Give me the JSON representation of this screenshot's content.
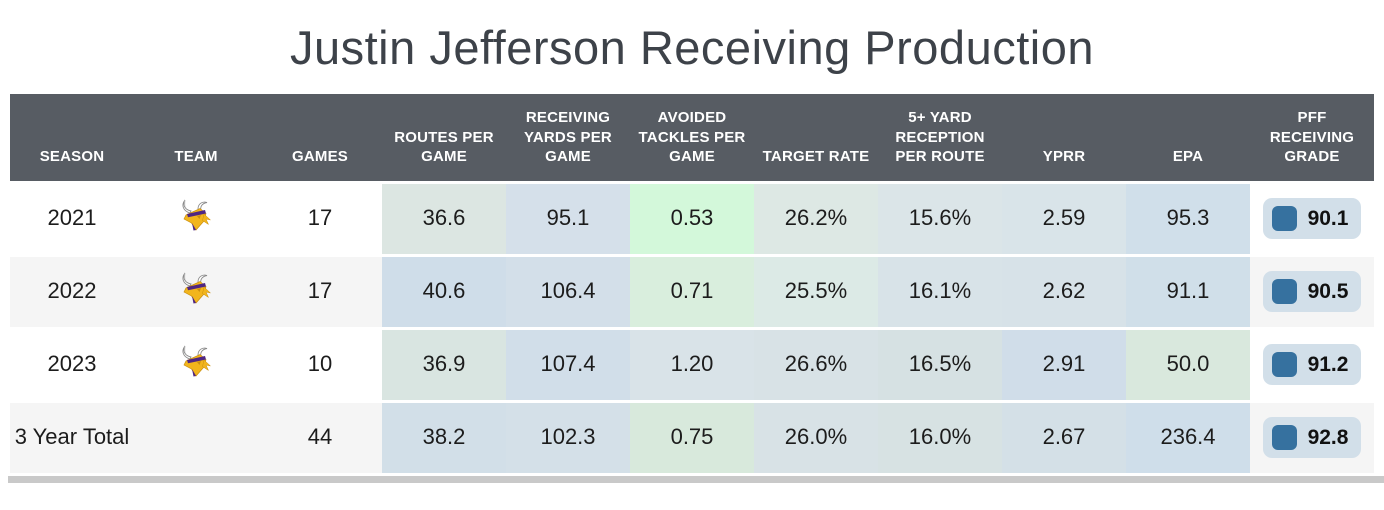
{
  "chart_data": {
    "type": "table",
    "title": "Justin Jefferson Receiving Production",
    "columns": [
      "SEASON",
      "TEAM",
      "GAMES",
      "ROUTES PER GAME",
      "RECEIVING YARDS PER GAME",
      "AVOIDED TACKLES PER GAME",
      "TARGET RATE",
      "5+ YARD RECEPTION PER ROUTE",
      "YPRR",
      "EPA",
      "PFF RECEIVING GRADE"
    ],
    "rows": [
      {
        "season": "2021",
        "team": "Minnesota Vikings",
        "show_logo": true,
        "games": "17",
        "stats": [
          {
            "value": "36.6",
            "bg": "#dce6e2"
          },
          {
            "value": "95.1",
            "bg": "#d5e0ea"
          },
          {
            "value": "0.53",
            "bg": "#d3f8da"
          },
          {
            "value": "26.2%",
            "bg": "#dde8e4"
          },
          {
            "value": "15.6%",
            "bg": "#dbe5e8"
          },
          {
            "value": "2.59",
            "bg": "#d9e4e9"
          },
          {
            "value": "95.3",
            "bg": "#d0dfea"
          }
        ],
        "grade": "90.1"
      },
      {
        "season": "2022",
        "team": "Minnesota Vikings",
        "show_logo": true,
        "games": "17",
        "stats": [
          {
            "value": "40.6",
            "bg": "#cfdde9"
          },
          {
            "value": "106.4",
            "bg": "#d3dfe9"
          },
          {
            "value": "0.71",
            "bg": "#d9eedd"
          },
          {
            "value": "25.5%",
            "bg": "#dceae6"
          },
          {
            "value": "16.1%",
            "bg": "#d8e3e8"
          },
          {
            "value": "2.62",
            "bg": "#d7e2e8"
          },
          {
            "value": "91.1",
            "bg": "#d0dfe9"
          }
        ],
        "grade": "90.5"
      },
      {
        "season": "2023",
        "team": "Minnesota Vikings",
        "show_logo": true,
        "games": "10",
        "stats": [
          {
            "value": "36.9",
            "bg": "#d9e5e1"
          },
          {
            "value": "107.4",
            "bg": "#d1dee9"
          },
          {
            "value": "1.20",
            "bg": "#d9e3e8"
          },
          {
            "value": "26.6%",
            "bg": "#d8e2e6"
          },
          {
            "value": "16.5%",
            "bg": "#d6e1e3"
          },
          {
            "value": "2.91",
            "bg": "#d0dde9"
          },
          {
            "value": "50.0",
            "bg": "#d9e8dd"
          }
        ],
        "grade": "91.2"
      },
      {
        "season": "3 Year Total",
        "team": "",
        "show_logo": false,
        "games": "44",
        "stats": [
          {
            "value": "38.2",
            "bg": "#d2dfe8"
          },
          {
            "value": "102.3",
            "bg": "#d4e0e8"
          },
          {
            "value": "0.75",
            "bg": "#d8e9dc"
          },
          {
            "value": "26.0%",
            "bg": "#d8e2e6"
          },
          {
            "value": "16.0%",
            "bg": "#d7e2e3"
          },
          {
            "value": "2.67",
            "bg": "#d4e0e7"
          },
          {
            "value": "236.4",
            "bg": "#cfdeea"
          }
        ],
        "grade": "92.8"
      }
    ]
  },
  "colors": {
    "header_bg": "#575c63",
    "header_text": "#ffffff",
    "row_bg": "#ffffff",
    "row_alt_bg": "#f5f5f5",
    "grade_pill_bg": "#d2dfe9",
    "grade_square": "#36719f",
    "scrollbar": "#c9c9c9",
    "title_color": "#3d4249",
    "team_purple": "#4f2683",
    "team_gold": "#f2b51c"
  }
}
